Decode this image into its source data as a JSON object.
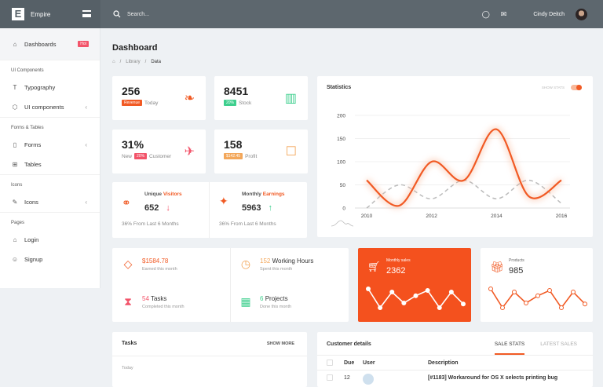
{
  "header": {
    "brand": "Empire",
    "logo_letter": "E",
    "search_placeholder": "Search...",
    "user_name": "Cindy Deitch",
    "icons": [
      "bulb-icon",
      "mail-icon"
    ]
  },
  "sidebar": {
    "items": [
      {
        "type": "item",
        "label": "Dashboards",
        "icon": "home-icon",
        "badge": "Hot",
        "active": true
      },
      {
        "type": "section",
        "label": "UI Components"
      },
      {
        "type": "item",
        "label": "Typography",
        "icon": "text-icon"
      },
      {
        "type": "item",
        "label": "UI components",
        "icon": "cube-icon",
        "chevron": true
      },
      {
        "type": "section",
        "label": "Forms & Tables"
      },
      {
        "type": "item",
        "label": "Forms",
        "icon": "clipboard-icon",
        "chevron": true
      },
      {
        "type": "item",
        "label": "Tables",
        "icon": "grid-icon"
      },
      {
        "type": "section",
        "label": "Icons"
      },
      {
        "type": "item",
        "label": "Icons",
        "icon": "brush-icon",
        "chevron": true
      },
      {
        "type": "section",
        "label": "Pages"
      },
      {
        "type": "item",
        "label": "Login",
        "icon": "lock-icon"
      },
      {
        "type": "item",
        "label": "Signup",
        "icon": "user-icon"
      }
    ]
  },
  "page": {
    "title": "Dashboard",
    "breadcrumb": [
      "Library",
      "Data"
    ]
  },
  "stats": [
    {
      "value": "256",
      "badge": "Revenue",
      "badge_color": "#f15a24",
      "pre": "",
      "post": "Today",
      "icon": "leaf-icon",
      "icon_color": "#f15a24"
    },
    {
      "value": "8451",
      "badge": "20%",
      "badge_color": "#3ecf8e",
      "pre": "",
      "post": "Stock",
      "icon": "bar-chart-icon",
      "icon_color": "#3ecf8e"
    },
    {
      "value": "31%",
      "badge": "20%",
      "badge_color": "#f2546a",
      "pre": "New",
      "post": "Customer",
      "icon": "rocket-icon",
      "icon_color": "#f2546a"
    },
    {
      "value": "158",
      "badge": "$142.45",
      "badge_color": "#f3a75a",
      "pre": "",
      "post": "Profit",
      "icon": "cart-icon",
      "icon_color": "#f3a75a"
    }
  ],
  "visitors": {
    "label": "Unique",
    "label_accent": "Visitors",
    "value": "652",
    "trend": "down",
    "note": "36% From Last 6 Months"
  },
  "earnings": {
    "label": "Monthly",
    "label_accent": "Earnings",
    "value": "5963",
    "trend": "up",
    "note": "36% From Last 6 Months"
  },
  "statistics": {
    "title": "Statistics",
    "toggle_label": "SHOW STATS",
    "toggle_on": true
  },
  "chart_data": {
    "type": "line",
    "x": [
      2010,
      2011,
      2012,
      2013,
      2014,
      2015,
      2016
    ],
    "xticks": [
      "2010",
      "2012",
      "2014",
      "2016"
    ],
    "yticks": [
      "0",
      "50",
      "100",
      "150",
      "200"
    ],
    "ylim": [
      0,
      200
    ],
    "grid": true,
    "series": [
      {
        "values": [
          60,
          5,
          100,
          60,
          170,
          25,
          60
        ],
        "color": "#f15a24",
        "style": "solid"
      },
      {
        "values": [
          0,
          50,
          20,
          60,
          20,
          60,
          10
        ],
        "color": "#bbbbbb",
        "style": "dashed"
      }
    ]
  },
  "metrics": [
    {
      "value": "$1584.78",
      "label": "",
      "sub": "Earned this month",
      "icon": "diamond-icon",
      "color": "#f15a24"
    },
    {
      "value": "152",
      "label": "Working Hours",
      "sub": "Spent this month",
      "icon": "clock-icon",
      "color": "#f3a75a"
    },
    {
      "value": "54",
      "label": "Tasks",
      "sub": "Completed this month",
      "icon": "hourglass-icon",
      "color": "#f2546a"
    },
    {
      "value": "6",
      "label": "Projects",
      "sub": "Done this month",
      "icon": "layout-icon",
      "color": "#3ecf8e"
    }
  ],
  "monthly_sales": {
    "label": "Monthly sales",
    "value": "2362",
    "spark": [
      7,
      1,
      6,
      2.5,
      4.8,
      6.5,
      1,
      6,
      2.2
    ]
  },
  "products": {
    "label": "Products",
    "value": "985",
    "spark": [
      7,
      1,
      6,
      2.5,
      4.8,
      6.5,
      1,
      6,
      2.2
    ]
  },
  "tasks": {
    "title": "Tasks",
    "action": "SHOW MORE",
    "group": "Today"
  },
  "customers": {
    "title": "Customer details",
    "tabs": [
      "SALE STATS",
      "LATEST SALES"
    ],
    "columns": [
      "Due",
      "User",
      "Description"
    ],
    "rows": [
      {
        "due": "12",
        "desc": "[#1183] Workaround for OS X selects printing bug"
      }
    ]
  }
}
